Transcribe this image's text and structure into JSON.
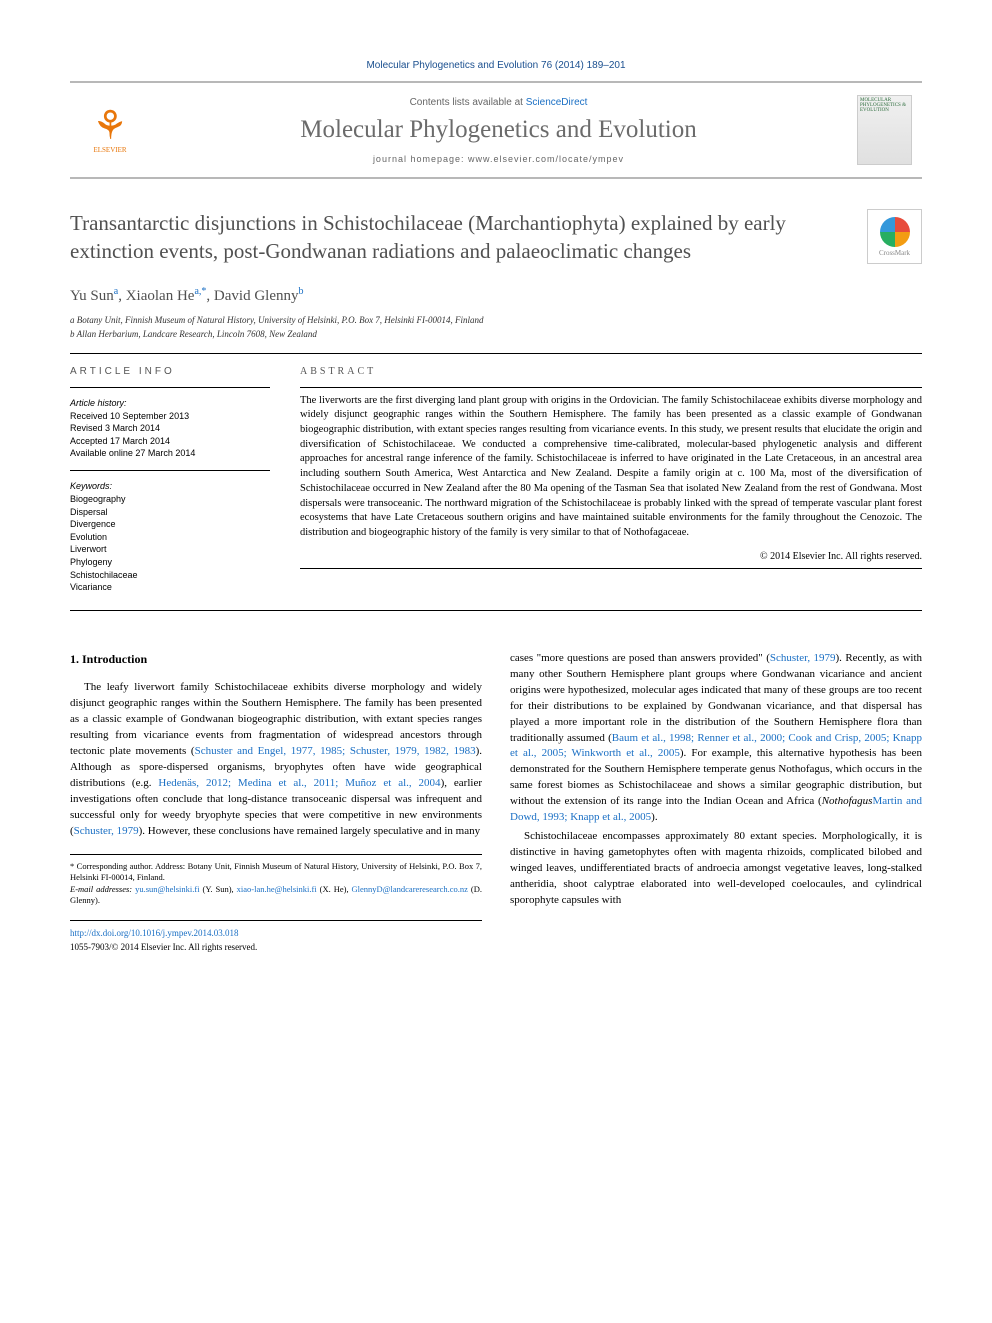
{
  "citation": "Molecular Phylogenetics and Evolution 76 (2014) 189–201",
  "header": {
    "contents_prefix": "Contents lists available at ",
    "contents_link": "ScienceDirect",
    "journal_name": "Molecular Phylogenetics and Evolution",
    "homepage_prefix": "journal homepage: ",
    "homepage_url": "www.elsevier.com/locate/ympev",
    "publisher": "ELSEVIER"
  },
  "title": "Transantarctic disjunctions in Schistochilaceae (Marchantiophyta) explained by early extinction events, post-Gondwanan radiations and palaeoclimatic changes",
  "crossmark_label": "CrossMark",
  "authors_html": "Yu Sun<sup>a</sup>, Xiaolan He<sup>a,*</sup>, David Glenny<sup>b</sup>",
  "affiliations": {
    "a": "a Botany Unit, Finnish Museum of Natural History, University of Helsinki, P.O. Box 7, Helsinki FI-00014, Finland",
    "b": "b Allan Herbarium, Landcare Research, Lincoln 7608, New Zealand"
  },
  "article_info": {
    "heading": "ARTICLE INFO",
    "history_label": "Article history:",
    "history": [
      "Received 10 September 2013",
      "Revised 3 March 2014",
      "Accepted 17 March 2014",
      "Available online 27 March 2014"
    ],
    "keywords_label": "Keywords:",
    "keywords": [
      "Biogeography",
      "Dispersal",
      "Divergence",
      "Evolution",
      "Liverwort",
      "Phylogeny",
      "Schistochilaceae",
      "Vicariance"
    ]
  },
  "abstract": {
    "heading": "ABSTRACT",
    "text": "The liverworts are the first diverging land plant group with origins in the Ordovician. The family Schistochilaceae exhibits diverse morphology and widely disjunct geographic ranges within the Southern Hemisphere. The family has been presented as a classic example of Gondwanan biogeographic distribution, with extant species ranges resulting from vicariance events. In this study, we present results that elucidate the origin and diversification of Schistochilaceae. We conducted a comprehensive time-calibrated, molecular-based phylogenetic analysis and different approaches for ancestral range inference of the family. Schistochilaceae is inferred to have originated in the Late Cretaceous, in an ancestral area including southern South America, West Antarctica and New Zealand. Despite a family origin at c. 100 Ma, most of the diversification of Schistochilaceae occurred in New Zealand after the 80 Ma opening of the Tasman Sea that isolated New Zealand from the rest of Gondwana. Most dispersals were transoceanic. The northward migration of the Schistochilaceae is probably linked with the spread of temperate vascular plant forest ecosystems that have Late Cretaceous southern origins and have maintained suitable environments for the family throughout the Cenozoic. The distribution and biogeographic history of the family is very similar to that of Nothofagaceae.",
    "copyright": "© 2014 Elsevier Inc. All rights reserved."
  },
  "body": {
    "section_heading": "1. Introduction",
    "col1_p1_a": "The leafy liverwort family Schistochilaceae exhibits diverse morphology and widely disjunct geographic ranges within the Southern Hemisphere. The family has been presented as a classic example of Gondwanan biogeographic distribution, with extant species ranges resulting from vicariance events from fragmentation of widespread ancestors through tectonic plate movements (",
    "col1_ref1": "Schuster and Engel, 1977, 1985; Schuster, 1979, 1982, 1983",
    "col1_p1_b": "). Although as spore-dispersed organisms, bryophytes often have wide geographical distributions (e.g. ",
    "col1_ref2": "Hedenäs, 2012; Medina et al., 2011; Muñoz et al., 2004",
    "col1_p1_c": "), earlier investigations often conclude that long-distance transoceanic dispersal was infrequent and successful only for weedy bryophyte species that were competitive in new environments (",
    "col1_ref3": "Schuster, 1979",
    "col1_p1_d": "). However, these conclusions have remained largely speculative and in many",
    "col2_p1_a": "cases \"more questions are posed than answers provided\" (",
    "col2_ref1": "Schuster, 1979",
    "col2_p1_b": "). Recently, as with many other Southern Hemisphere plant groups where Gondwanan vicariance and ancient origins were hypothesized, molecular ages indicated that many of these groups are too recent for their distributions to be explained by Gondwanan vicariance, and that dispersal has played a more important role in the distribution of the Southern Hemisphere flora than traditionally assumed (",
    "col2_ref2": "Baum et al., 1998; Renner et al., 2000; Cook and Crisp, 2005; Knapp et al., 2005; Winkworth et al., 2005",
    "col2_p1_c": "). For example, this alternative hypothesis has been demonstrated for the Southern Hemisphere temperate genus Nothofagus, which occurs in the same forest biomes as Schistochilaceae and shows a similar geographic distribution, but without the extension of its range into the Indian Ocean and Africa (",
    "col2_ref3": "Martin and Dowd, 1993; Knapp et al., 2005",
    "col2_p1_d": ").",
    "col2_p2": "Schistochilaceae encompasses approximately 80 extant species. Morphologically, it is distinctive in having gametophytes often with magenta rhizoids, complicated bilobed and winged leaves, undifferentiated bracts of androecia amongst vegetative leaves, long-stalked antheridia, shoot calyptrae elaborated into well-developed coelocaules, and cylindrical sporophyte capsules with"
  },
  "footnote": {
    "corresponding": "* Corresponding author. Address: Botany Unit, Finnish Museum of Natural History, University of Helsinki, P.O. Box 7, Helsinki FI-00014, Finland.",
    "email_label": "E-mail addresses: ",
    "emails": [
      {
        "addr": "yu.sun@helsinki.fi",
        "who": " (Y. Sun), "
      },
      {
        "addr": "xiao-lan.he@helsinki.fi",
        "who": " (X. He), "
      },
      {
        "addr": "GlennyD@landcareresearch.co.nz",
        "who": " (D. Glenny)."
      }
    ]
  },
  "footer": {
    "doi": "http://dx.doi.org/10.1016/j.ympev.2014.03.018",
    "issn_line": "1055-7903/© 2014 Elsevier Inc. All rights reserved."
  }
}
